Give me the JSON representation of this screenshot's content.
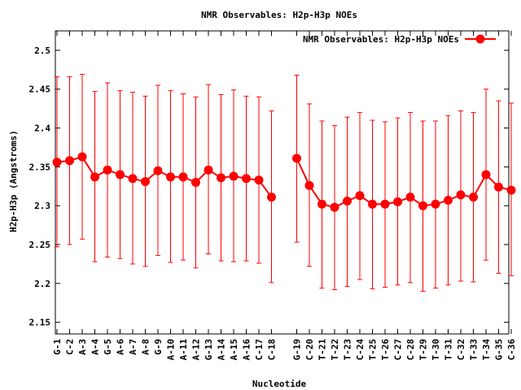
{
  "chart_data": {
    "type": "line",
    "title": "NMR Observables: H2p-H3p NOEs",
    "xlabel": "Nucleotide",
    "ylabel": "H2p-H3p (Angstroms)",
    "ylim": [
      2.135,
      2.525
    ],
    "yticks": [
      "2.15",
      "2.2",
      "2.25",
      "2.3",
      "2.35",
      "2.4",
      "2.45",
      "2.5"
    ],
    "grid": false,
    "legend_position": "top-right",
    "color": "#ff0000",
    "series": [
      {
        "name": "NMR Observables: H2p-H3p NOEs",
        "segments": [
          {
            "x": [
              "G-1",
              "C-2",
              "A-3",
              "A-4",
              "G-5",
              "A-6",
              "A-7",
              "A-8",
              "G-9",
              "A-10",
              "A-11",
              "A-12",
              "G-13",
              "A-14",
              "A-15",
              "A-16",
              "C-17",
              "C-18"
            ],
            "y": [
              2.356,
              2.358,
              2.363,
              2.337,
              2.346,
              2.34,
              2.335,
              2.331,
              2.345,
              2.337,
              2.337,
              2.33,
              2.346,
              2.336,
              2.338,
              2.335,
              2.333,
              2.311
            ],
            "err_high": [
              2.466,
              2.466,
              2.469,
              2.447,
              2.458,
              2.448,
              2.446,
              2.441,
              2.455,
              2.448,
              2.444,
              2.44,
              2.456,
              2.443,
              2.449,
              2.441,
              2.44,
              2.422
            ],
            "err_low": [
              2.247,
              2.25,
              2.257,
              2.228,
              2.234,
              2.232,
              2.225,
              2.222,
              2.236,
              2.227,
              2.23,
              2.22,
              2.238,
              2.229,
              2.228,
              2.229,
              2.226,
              2.201
            ]
          },
          {
            "x": [
              "G-19",
              "C-20",
              "T-21",
              "T-22",
              "T-23",
              "C-24",
              "T-25",
              "T-26",
              "C-27",
              "C-28",
              "T-29",
              "T-30",
              "T-31",
              "C-32",
              "T-33",
              "T-34",
              "G-35",
              "C-36"
            ],
            "y": [
              2.361,
              2.326,
              2.302,
              2.298,
              2.306,
              2.313,
              2.302,
              2.302,
              2.305,
              2.311,
              2.3,
              2.302,
              2.307,
              2.314,
              2.311,
              2.34,
              2.324,
              2.32
            ],
            "err_high": [
              2.468,
              2.431,
              2.409,
              2.403,
              2.414,
              2.42,
              2.41,
              2.408,
              2.413,
              2.42,
              2.409,
              2.409,
              2.416,
              2.422,
              2.42,
              2.45,
              2.435,
              2.432
            ],
            "err_low": [
              2.253,
              2.222,
              2.194,
              2.192,
              2.196,
              2.205,
              2.193,
              2.195,
              2.198,
              2.201,
              2.19,
              2.194,
              2.198,
              2.203,
              2.202,
              2.23,
              2.213,
              2.21
            ]
          }
        ]
      }
    ]
  }
}
